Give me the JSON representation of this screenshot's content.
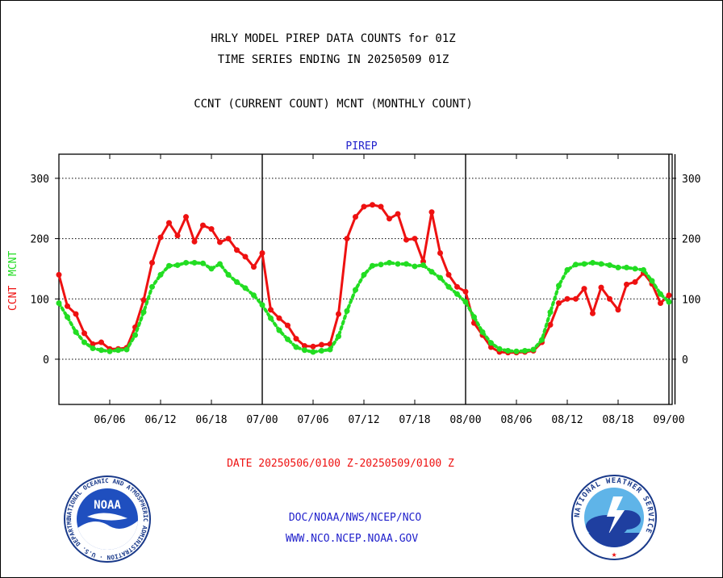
{
  "header": {
    "title_line1": "HRLY MODEL PIREP DATA COUNTS for 01Z",
    "title_line2": "TIME SERIES ENDING IN 20250509 01Z",
    "subtitle": "CCNT (CURRENT COUNT) MCNT (MONTHLY COUNT)"
  },
  "footer": {
    "date_range": "DATE 20250506/0100 Z-20250509/0100 Z",
    "org_line1": "DOC/NOAA/NWS/NCEP/NCO",
    "org_line2": "WWW.NCO.NCEP.NOAA.GOV",
    "noaa_logo": "NOAA",
    "noaa_ring_text": "NATIONAL OCEANIC AND ATMOSPHERIC ADMINISTRATION · U.S. DEPARTMENT OF COMMERCE",
    "nws_ring_text": "NATIONAL WEATHER SERVICE"
  },
  "colors": {
    "ccnt": "#ee1111",
    "mcnt": "#22dd22",
    "plot_label": "#2222cc",
    "text": "#000000"
  },
  "chart_data": {
    "type": "line",
    "title": "PIREP",
    "ylabel_ccnt": "CCNT",
    "ylabel_mcnt": "MCNT",
    "ylim": [
      -75,
      340
    ],
    "yticks": [
      0,
      100,
      200,
      300
    ],
    "ytick_labels": [
      "0",
      "100",
      "200",
      "300"
    ],
    "xticks": [
      "06/06",
      "06/12",
      "06/18",
      "07/00",
      "07/06",
      "07/12",
      "07/18",
      "08/00",
      "08/06",
      "08/12",
      "08/18",
      "09/00"
    ],
    "day_boundaries_hours": [
      24,
      48,
      72
    ],
    "x_start": "06/00",
    "x_end": "09/01",
    "grid": "horizontal dotted",
    "series": [
      {
        "name": "CCNT",
        "color": "#ee1111",
        "values": [
          140,
          88,
          75,
          43,
          25,
          28,
          17,
          17,
          19,
          53,
          98,
          160,
          202,
          226,
          205,
          236,
          195,
          222,
          216,
          194,
          200,
          181,
          170,
          153,
          176,
          82,
          68,
          56,
          34,
          22,
          21,
          24,
          25,
          75,
          200,
          236,
          253,
          256,
          253,
          233,
          241,
          198,
          200,
          162,
          244,
          176,
          140,
          120,
          112,
          60,
          40,
          20,
          12,
          11,
          11,
          12,
          14,
          28,
          57,
          93,
          100,
          100,
          117,
          76,
          119,
          100,
          82,
          124,
          128,
          143,
          125,
          93,
          106
        ]
      },
      {
        "name": "MCNT",
        "color": "#22dd22",
        "values": [
          93,
          70,
          45,
          28,
          18,
          15,
          13,
          15,
          16,
          40,
          78,
          120,
          140,
          155,
          156,
          160,
          160,
          159,
          150,
          158,
          140,
          128,
          118,
          106,
          90,
          68,
          48,
          33,
          20,
          15,
          12,
          14,
          16,
          38,
          80,
          115,
          140,
          155,
          157,
          160,
          158,
          158,
          154,
          156,
          145,
          135,
          120,
          108,
          95,
          70,
          45,
          27,
          17,
          14,
          13,
          14,
          16,
          32,
          78,
          122,
          148,
          157,
          158,
          160,
          158,
          156,
          152,
          152,
          150,
          148,
          130,
          108,
          95
        ]
      }
    ]
  }
}
